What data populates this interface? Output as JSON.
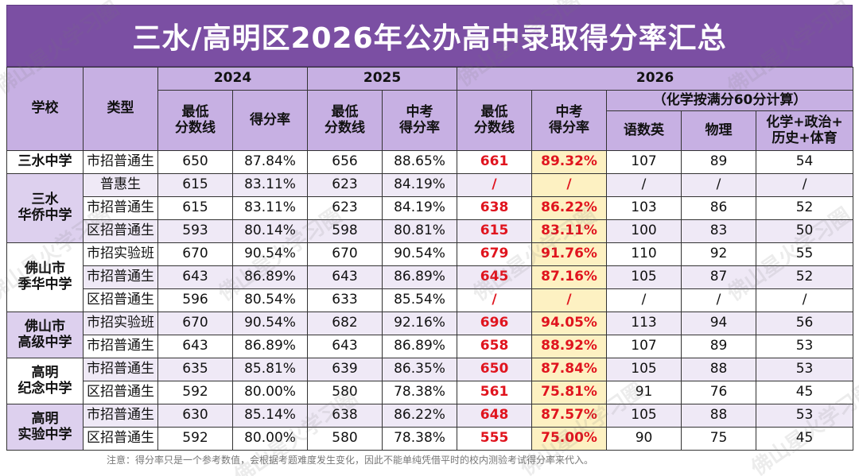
{
  "title": "三水/高明区2026年公办高中录取得分率汇总",
  "header": {
    "school": "学校",
    "type": "类型",
    "y2024": "2024",
    "y2025": "2025",
    "y2026": "2026",
    "min_score": "最低\n分数线",
    "rate": "得分率",
    "zk_rate": "中考\n得分率",
    "note_2026": "（化学按满分60分计算）",
    "yushuying": "语数英",
    "wuli": "物理",
    "huaxue_etc": "化学+政治+\n历史+体育"
  },
  "schools": [
    {
      "name": "三水中学",
      "rows": [
        {
          "type": "市招普通生",
          "s24": "650",
          "r24": "87.84%",
          "s25": "656",
          "r25": "88.65%",
          "s26": "661",
          "r26": "89.32%",
          "ysy": "107",
          "wl": "89",
          "hx": "54"
        }
      ]
    },
    {
      "name": "三水\n华侨中学",
      "rows": [
        {
          "type": "普惠生",
          "s24": "615",
          "r24": "83.11%",
          "s25": "623",
          "r25": "84.19%",
          "s26": "/",
          "r26": "/",
          "ysy": "/",
          "wl": "/",
          "hx": "/"
        },
        {
          "type": "市招普通生",
          "s24": "615",
          "r24": "83.11%",
          "s25": "623",
          "r25": "84.19%",
          "s26": "638",
          "r26": "86.22%",
          "ysy": "103",
          "wl": "86",
          "hx": "52"
        },
        {
          "type": "区招普通生",
          "s24": "593",
          "r24": "80.14%",
          "s25": "598",
          "r25": "80.81%",
          "s26": "615",
          "r26": "83.11%",
          "ysy": "100",
          "wl": "83",
          "hx": "50"
        }
      ]
    },
    {
      "name": "佛山市\n季华中学",
      "rows": [
        {
          "type": "市招实验班",
          "s24": "670",
          "r24": "90.54%",
          "s25": "670",
          "r25": "90.54%",
          "s26": "679",
          "r26": "91.76%",
          "ysy": "110",
          "wl": "92",
          "hx": "55"
        },
        {
          "type": "市招普通生",
          "s24": "643",
          "r24": "86.89%",
          "s25": "643",
          "r25": "86.89%",
          "s26": "645",
          "r26": "87.16%",
          "ysy": "105",
          "wl": "87",
          "hx": "52"
        },
        {
          "type": "区招普通生",
          "s24": "596",
          "r24": "80.54%",
          "s25": "633",
          "r25": "85.54%",
          "s26": "/",
          "r26": "/",
          "ysy": "/",
          "wl": "/",
          "hx": "/"
        }
      ]
    },
    {
      "name": "佛山市\n高级中学",
      "rows": [
        {
          "type": "市招实验班",
          "s24": "670",
          "r24": "90.54%",
          "s25": "682",
          "r25": "92.16%",
          "s26": "696",
          "r26": "94.05%",
          "ysy": "113",
          "wl": "94",
          "hx": "56"
        },
        {
          "type": "市招普通生",
          "s24": "643",
          "r24": "86.89%",
          "s25": "643",
          "r25": "86.89%",
          "s26": "658",
          "r26": "88.92%",
          "ysy": "107",
          "wl": "89",
          "hx": "53"
        }
      ]
    },
    {
      "name": "高明\n纪念中学",
      "rows": [
        {
          "type": "市招普通生",
          "s24": "635",
          "r24": "85.81%",
          "s25": "639",
          "r25": "86.35%",
          "s26": "650",
          "r26": "87.84%",
          "ysy": "105",
          "wl": "88",
          "hx": "53"
        },
        {
          "type": "区招普通生",
          "s24": "592",
          "r24": "80.00%",
          "s25": "580",
          "r25": "78.38%",
          "s26": "561",
          "r26": "75.81%",
          "ysy": "91",
          "wl": "76",
          "hx": "45"
        }
      ]
    },
    {
      "name": "高明\n实验中学",
      "rows": [
        {
          "type": "市招普通生",
          "s24": "630",
          "r24": "85.14%",
          "s25": "638",
          "r25": "86.22%",
          "s26": "648",
          "r26": "87.57%",
          "ysy": "105",
          "wl": "88",
          "hx": "53"
        },
        {
          "type": "区招普通生",
          "s24": "592",
          "r24": "80.00%",
          "s25": "580",
          "r25": "78.38%",
          "s26": "555",
          "r26": "75.00%",
          "ysy": "90",
          "wl": "75",
          "hx": "45"
        }
      ]
    }
  ],
  "note": "注意：得分率只是一个参考数值，会根据考题难度发生变化，因此不能单纯凭借平时的校内测验考试得分率来代入。",
  "watermark": "佛山星火学习圈",
  "colors": {
    "title_bg": "#7b4fa3",
    "header_bg": "#c7b0e3",
    "highlight_red": "#e0141e",
    "highlight_yellow": "#fdf1c2"
  }
}
